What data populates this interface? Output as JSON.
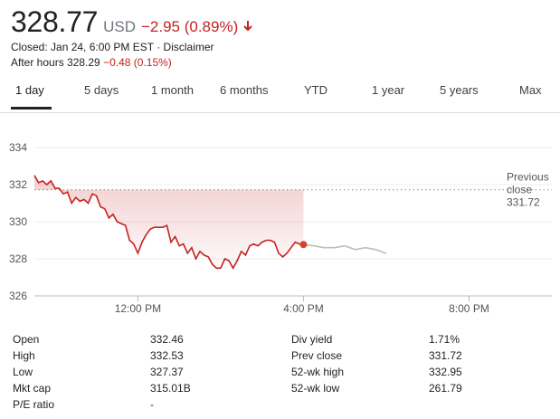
{
  "quote": {
    "price": "328.77",
    "currency": "USD",
    "change": "−2.95 (0.89%)",
    "direction_icon": "arrow-down-icon",
    "closed_text": "Closed: Jan 24, 6:00 PM EST · Disclaimer",
    "after_hours_label": "After hours 328.29",
    "after_hours_change": "−0.48 (0.15%)"
  },
  "tabs": [
    "1 day",
    "5 days",
    "1 month",
    "6 months",
    "YTD",
    "1 year",
    "5 years",
    "Max"
  ],
  "active_tab": "1 day",
  "colors": {
    "negative": "#c5221f",
    "line": "#c5221f",
    "after_hours_line": "#bdbdbd"
  },
  "chart_data": {
    "type": "line",
    "y_ticks": [
      "334",
      "332",
      "330",
      "328",
      "326"
    ],
    "ylim": [
      326,
      334
    ],
    "x_ticks": [
      "12:00 PM",
      "4:00 PM",
      "8:00 PM"
    ],
    "reference_line": {
      "label_line1": "Previous",
      "label_line2": "close",
      "value_label": "331.72",
      "value": 331.72
    },
    "series": [
      {
        "session": "regular",
        "x": [
          "09:30",
          "09:36",
          "09:42",
          "09:48",
          "09:54",
          "10:00",
          "10:06",
          "10:12",
          "10:18",
          "10:24",
          "10:30",
          "10:36",
          "10:42",
          "10:48",
          "10:54",
          "11:00",
          "11:06",
          "11:12",
          "11:18",
          "11:24",
          "11:30",
          "11:36",
          "11:42",
          "11:48",
          "11:54",
          "12:00",
          "12:06",
          "12:12",
          "12:18",
          "12:24",
          "12:30",
          "12:36",
          "12:42",
          "12:48",
          "12:54",
          "13:00",
          "13:06",
          "13:12",
          "13:18",
          "13:24",
          "13:30",
          "13:36",
          "13:42",
          "13:48",
          "13:54",
          "14:00",
          "14:06",
          "14:12",
          "14:18",
          "14:24",
          "14:30",
          "14:36",
          "14:42",
          "14:48",
          "14:54",
          "15:00",
          "15:06",
          "15:12",
          "15:18",
          "15:24",
          "15:30",
          "15:36",
          "15:42",
          "15:48",
          "15:54",
          "16:00"
        ],
        "y": [
          332.5,
          332.1,
          332.2,
          332.0,
          332.2,
          331.8,
          331.8,
          331.5,
          331.6,
          331.0,
          331.3,
          331.1,
          331.2,
          331.0,
          331.5,
          331.4,
          330.8,
          330.7,
          330.2,
          330.4,
          330.0,
          329.9,
          329.8,
          329.0,
          328.8,
          328.3,
          328.9,
          329.3,
          329.6,
          329.7,
          329.7,
          329.7,
          329.8,
          328.9,
          329.2,
          328.7,
          328.8,
          328.3,
          328.6,
          328.0,
          328.4,
          328.2,
          328.1,
          327.7,
          327.5,
          327.5,
          328.0,
          327.9,
          327.5,
          327.9,
          328.4,
          328.2,
          328.7,
          328.8,
          328.7,
          328.9,
          329.0,
          329.0,
          328.9,
          328.3,
          328.1,
          328.3,
          328.6,
          328.9,
          328.8,
          328.77
        ]
      },
      {
        "session": "after_hours",
        "x": [
          "16:00",
          "16:15",
          "16:30",
          "16:45",
          "17:00",
          "17:15",
          "17:30",
          "17:45",
          "18:00"
        ],
        "y": [
          328.77,
          328.7,
          328.6,
          328.6,
          328.7,
          328.5,
          328.6,
          328.5,
          328.29
        ]
      }
    ]
  },
  "stats": [
    {
      "label1": "Open",
      "value1": "332.46",
      "label2": "Div yield",
      "value2": "1.71%"
    },
    {
      "label1": "High",
      "value1": "332.53",
      "label2": "Prev close",
      "value2": "331.72"
    },
    {
      "label1": "Low",
      "value1": "327.37",
      "label2": "52-wk high",
      "value2": "332.95"
    },
    {
      "label1": "Mkt cap",
      "value1": "315.01B",
      "label2": "52-wk low",
      "value2": "261.79"
    },
    {
      "label1": "P/E ratio",
      "value1": "-",
      "label2": "",
      "value2": ""
    }
  ]
}
